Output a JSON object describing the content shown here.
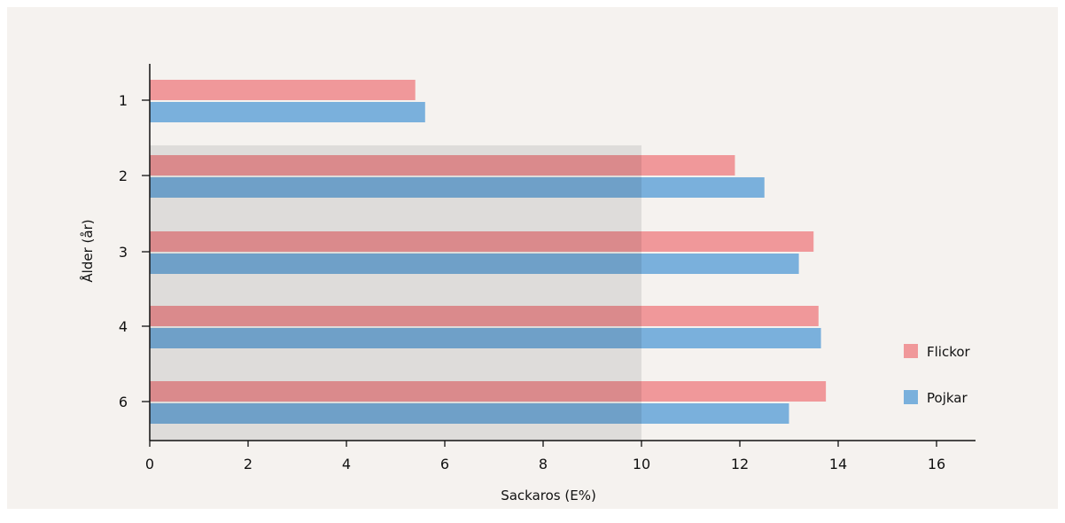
{
  "chart_data": {
    "type": "bar",
    "orientation": "horizontal",
    "categories": [
      "1",
      "2",
      "3",
      "4",
      "6"
    ],
    "series": [
      {
        "name": "Flickor",
        "color": "#f0989a",
        "values": [
          5.4,
          11.9,
          13.5,
          13.6,
          13.75
        ]
      },
      {
        "name": "Pojkar",
        "color": "#7ab0dc",
        "values": [
          5.6,
          12.5,
          13.2,
          13.65,
          13.0
        ]
      }
    ],
    "xlabel": "Sackaros (E%)",
    "ylabel": "Ålder (år)",
    "xlim": [
      0,
      16
    ],
    "xticks": [
      "0",
      "2",
      "4",
      "6",
      "8",
      "10",
      "12",
      "14",
      "16"
    ],
    "shaded_region": {
      "x": [
        0,
        10
      ],
      "categories_from": "2",
      "color": "#dedcda"
    },
    "legend_position": "right",
    "grid": false
  },
  "colors": {
    "background": "#f5f2ef",
    "axis": "#111111"
  }
}
